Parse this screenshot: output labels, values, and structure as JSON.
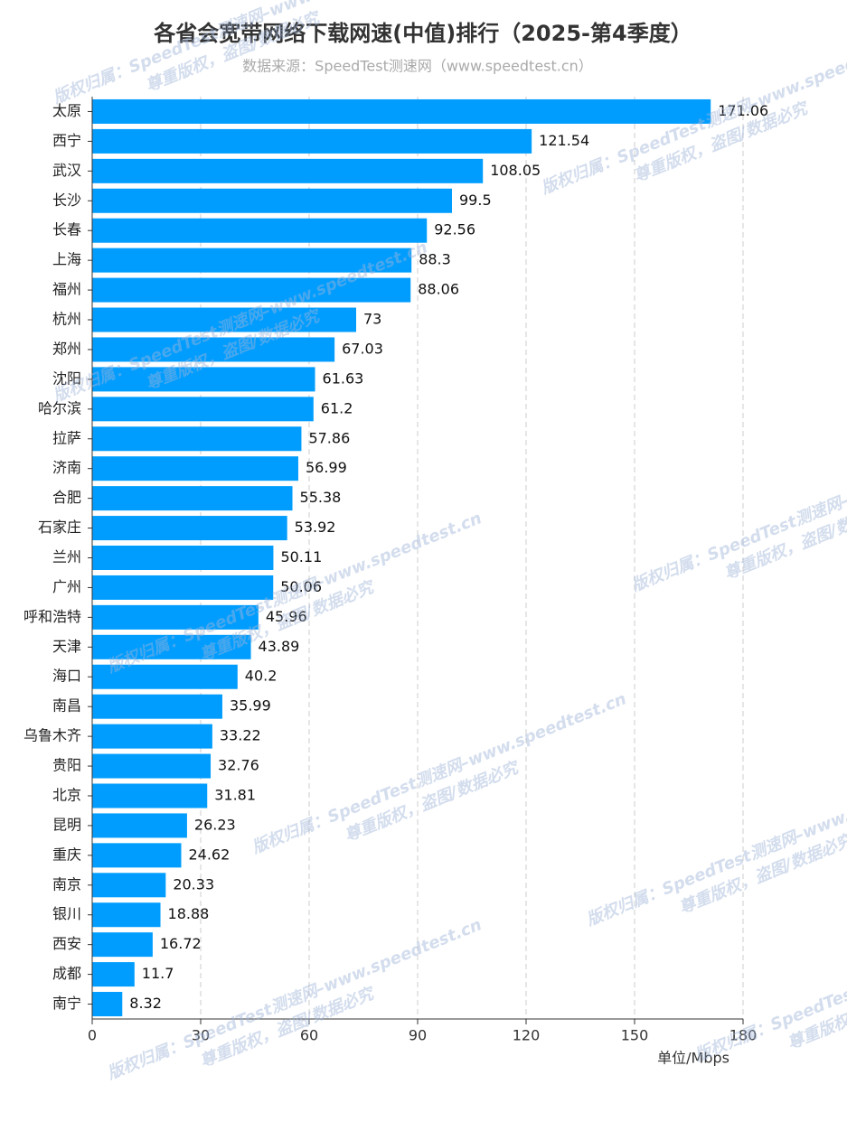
{
  "chart_data": {
    "type": "bar",
    "orientation": "horizontal",
    "title": "各省会宽带网络下载网速(中值)排行（2025-第4季度）",
    "subtitle": "数据来源：SpeedTest测速网（www.speedtest.cn）",
    "categories": [
      "太原",
      "西宁",
      "武汉",
      "长沙",
      "长春",
      "上海",
      "福州",
      "杭州",
      "郑州",
      "沈阳",
      "哈尔滨",
      "拉萨",
      "济南",
      "合肥",
      "石家庄",
      "兰州",
      "广州",
      "呼和浩特",
      "天津",
      "海口",
      "南昌",
      "乌鲁木齐",
      "贵阳",
      "北京",
      "昆明",
      "重庆",
      "南京",
      "银川",
      "西安",
      "成都",
      "南宁"
    ],
    "values": [
      171.06,
      121.54,
      108.05,
      99.5,
      92.56,
      88.3,
      88.06,
      73,
      67.03,
      61.63,
      61.2,
      57.86,
      56.99,
      55.38,
      53.92,
      50.11,
      50.06,
      45.96,
      43.89,
      40.2,
      35.99,
      33.22,
      32.76,
      31.81,
      26.23,
      24.62,
      20.33,
      18.88,
      16.72,
      11.7,
      8.32
    ],
    "color": "#009dff",
    "xlim": [
      0,
      180
    ],
    "xticks": [
      0,
      30,
      60,
      90,
      120,
      150,
      180
    ],
    "xlabel": "单位/Mbps",
    "grid": true
  },
  "watermark": [
    "版权归属：SpeedTest测速网–www.speedtest.cn",
    "尊重版权，盗图/数据必究"
  ]
}
